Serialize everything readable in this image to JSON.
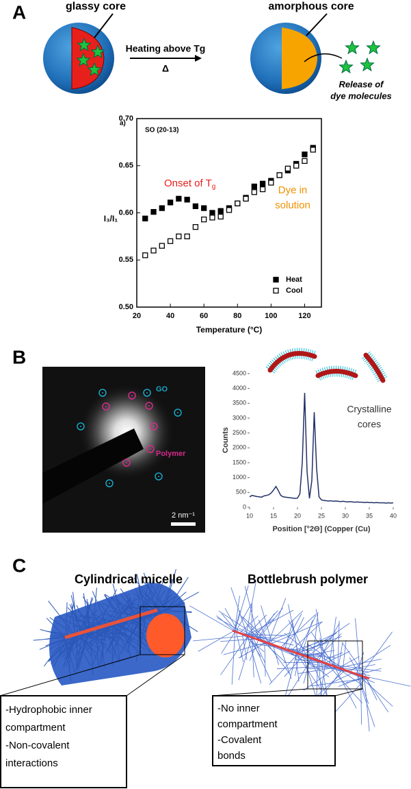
{
  "panels": {
    "a": {
      "letter": "A",
      "glassy_core": "glassy core",
      "amorphous_core": "amorphous core",
      "arrow_label": "Heating above Tg",
      "delta": "Δ",
      "release_line1": "Release of",
      "release_line2": "dye molecules"
    },
    "b": {
      "letter": "B",
      "go_label": "GO",
      "polymer_label": "Polymer",
      "scale_bar": "2 nm⁻¹"
    },
    "c": {
      "letter": "C",
      "left_title": "Cylindrical micelle",
      "right_title": "Bottlebrush polymer",
      "left_box": [
        "-Hydrophobic inner",
        "compartment",
        "-Non-covalent",
        "interactions"
      ],
      "right_box": [
        "-No inner",
        "compartment",
        "-Covalent",
        "bonds"
      ]
    }
  },
  "chart_data": [
    {
      "type": "scatter",
      "panel_label": "a)",
      "subtitle": "SO (20-13)",
      "x_label": "Temperature (°C)",
      "y_label": "I₃/I₁",
      "annotation_main": "Onset of T",
      "annotation_sub": "g",
      "annotation2_line1": "Dye in",
      "annotation2_line2": "solution",
      "x": [
        25,
        30,
        35,
        40,
        45,
        50,
        55,
        60,
        65,
        70,
        75,
        80,
        85,
        90,
        95,
        100,
        105,
        110,
        115,
        120,
        125
      ],
      "series": [
        {
          "name": "Heat",
          "color": "#000000",
          "marker": "filled",
          "values": [
            0.594,
            0.601,
            0.605,
            0.611,
            0.615,
            0.614,
            0.607,
            0.605,
            0.6,
            0.602,
            0.605,
            0.61,
            0.616,
            0.628,
            0.631,
            0.634,
            0.64,
            0.645,
            0.652,
            0.662,
            0.669
          ]
        },
        {
          "name": "Cool",
          "color": "#000000",
          "marker": "open",
          "values": [
            0.555,
            0.56,
            0.565,
            0.57,
            0.575,
            0.575,
            0.585,
            0.593,
            0.595,
            0.596,
            0.603,
            0.61,
            0.615,
            0.622,
            0.625,
            0.632,
            0.64,
            0.647,
            0.65,
            0.655,
            0.667
          ]
        }
      ],
      "xlim": [
        20,
        130
      ],
      "xticks": [
        20,
        40,
        60,
        80,
        100,
        120
      ],
      "ylim": [
        0.5,
        0.7
      ],
      "yticks": [
        {
          "value": 0.5,
          "label": "0.50"
        },
        0.55,
        {
          "value": 0.6,
          "label": "0.60"
        },
        0.65,
        {
          "value": 0.7,
          "label": "0.70"
        }
      ],
      "legend": "lower right"
    },
    {
      "type": "line",
      "x_label": "Position [°2Θ] (Copper (Cu)",
      "y_label": "Counts",
      "annotation_line1": "Crystalline",
      "annotation_line2": "cores",
      "color": "#1f2f66",
      "x": [
        10,
        10.5,
        11,
        11.5,
        12,
        12.5,
        13,
        13.5,
        14,
        14.5,
        15,
        15.5,
        16,
        16.5,
        17,
        17.5,
        18,
        18.5,
        19,
        19.5,
        20,
        20.5,
        21,
        21.5,
        22,
        22.5,
        23,
        23.5,
        24,
        24.5,
        25,
        25.5,
        26,
        26.5,
        27,
        27.5,
        28,
        28.5,
        29,
        29.5,
        30,
        30.5,
        31,
        31.5,
        32,
        32.5,
        33,
        33.5,
        34,
        34.5,
        35,
        35.5,
        36,
        36.5,
        37,
        37.5,
        38,
        38.5,
        39,
        39.5,
        40
      ],
      "values": [
        350,
        400,
        380,
        360,
        350,
        340,
        380,
        400,
        420,
        480,
        580,
        700,
        560,
        400,
        350,
        340,
        330,
        320,
        310,
        300,
        310,
        450,
        1500,
        3850,
        1200,
        300,
        900,
        3200,
        1300,
        350,
        250,
        230,
        220,
        210,
        220,
        200,
        210,
        200,
        190,
        200,
        190,
        180,
        190,
        180,
        170,
        180,
        170,
        170,
        160,
        170,
        160,
        160,
        150,
        160,
        150,
        150,
        150,
        140,
        150,
        140,
        150
      ],
      "xlim": [
        10,
        40
      ],
      "xticks": [
        10,
        15,
        20,
        25,
        30,
        35,
        40
      ],
      "ylim": [
        0,
        4500
      ],
      "yticks": [
        0,
        500,
        1000,
        1500,
        2000,
        2500,
        3000,
        3500,
        4000,
        4500
      ]
    }
  ]
}
